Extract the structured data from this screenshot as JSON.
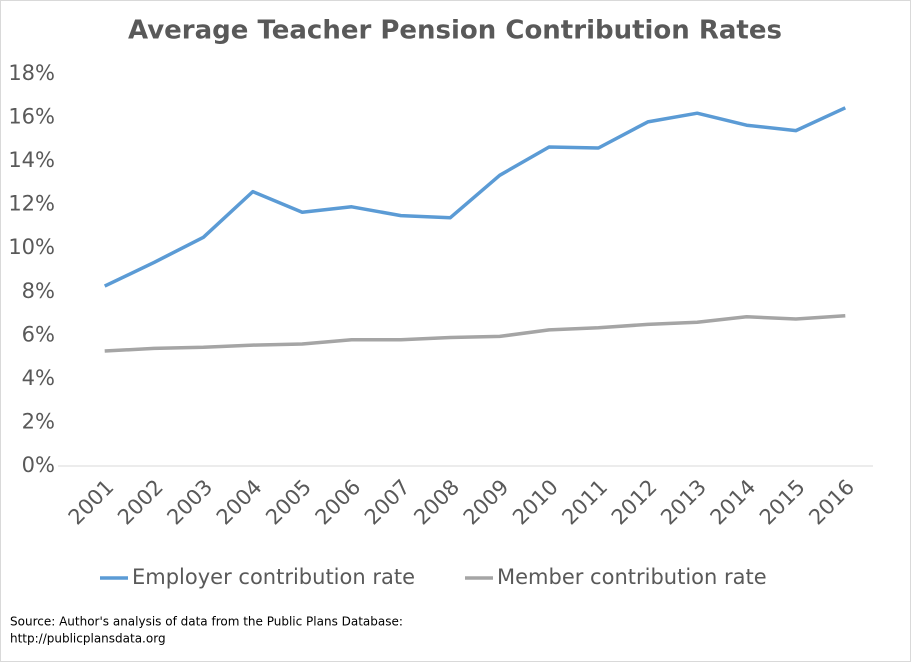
{
  "chart_data": {
    "type": "line",
    "title": "Average Teacher Pension Contribution Rates",
    "categories": [
      "2001",
      "2002",
      "2003",
      "2004",
      "2005",
      "2006",
      "2007",
      "2008",
      "2009",
      "2010",
      "2011",
      "2012",
      "2013",
      "2014",
      "2015",
      "2016"
    ],
    "series": [
      {
        "name": "Employer contribution rate",
        "color": "#5b9bd5",
        "values": [
          8.26,
          9.35,
          10.5,
          12.6,
          11.65,
          11.9,
          11.5,
          11.4,
          13.35,
          14.65,
          14.6,
          15.8,
          16.2,
          15.65,
          15.4,
          16.45
        ]
      },
      {
        "name": "Member contribution rate",
        "color": "#a5a5a5",
        "values": [
          5.28,
          5.4,
          5.45,
          5.55,
          5.6,
          5.8,
          5.8,
          5.9,
          5.95,
          6.25,
          6.35,
          6.5,
          6.6,
          6.85,
          6.75,
          6.9
        ]
      }
    ],
    "ylim": [
      0,
      18
    ],
    "yticks": [
      {
        "value": 0,
        "label": "0%"
      },
      {
        "value": 2,
        "label": "2%"
      },
      {
        "value": 4,
        "label": "4%"
      },
      {
        "value": 6,
        "label": "6%"
      },
      {
        "value": 8,
        "label": "8%"
      },
      {
        "value": 10,
        "label": "10%"
      },
      {
        "value": 12,
        "label": "12%"
      },
      {
        "value": 14,
        "label": "14%"
      },
      {
        "value": 16,
        "label": "16%"
      },
      {
        "value": 18,
        "label": "18%"
      }
    ],
    "grid": false,
    "legend": "bottom",
    "source": [
      "Source: Author's analysis of data from the Public Plans Database:",
      "http://publicplansdata.org"
    ]
  }
}
